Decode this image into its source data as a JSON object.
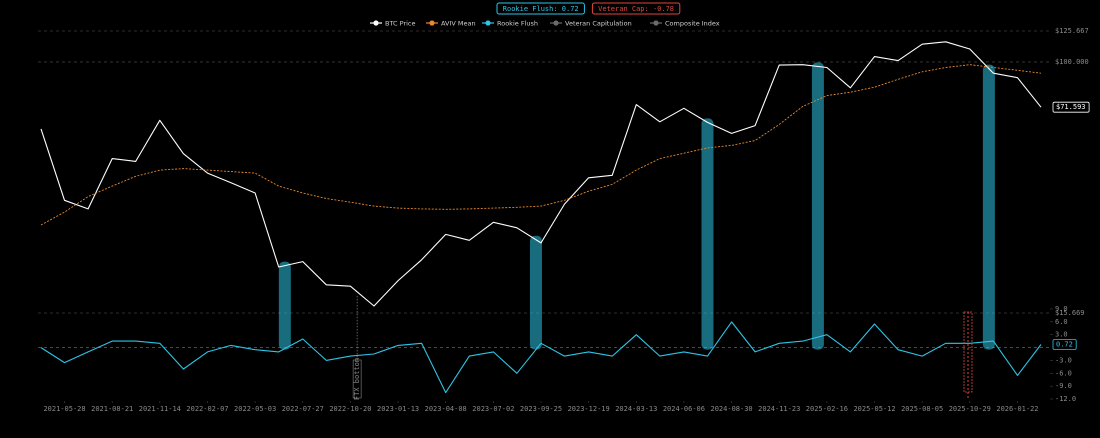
{
  "chart_data": {
    "type": "line",
    "badges": [
      {
        "text": "Rookie Flush: 0.72",
        "color": "#2ec4e6"
      },
      {
        "text": "Veteran Cap: -0.78",
        "color": "#e0463c"
      }
    ],
    "x": [
      "2021-04-16",
      "2021-05-28",
      "2021-07-09",
      "2021-08-21",
      "2021-10-02",
      "2021-11-14",
      "2021-12-26",
      "2022-02-07",
      "2022-03-21",
      "2022-05-03",
      "2022-06-14",
      "2022-07-27",
      "2022-09-07",
      "2022-10-20",
      "2022-12-01",
      "2023-01-13",
      "2023-02-24",
      "2023-04-08",
      "2023-05-20",
      "2023-07-02",
      "2023-08-13",
      "2023-09-25",
      "2023-11-06",
      "2023-12-19",
      "2024-01-30",
      "2024-03-13",
      "2024-04-24",
      "2024-06-06",
      "2024-07-18",
      "2024-08-30",
      "2024-10-11",
      "2024-11-23",
      "2025-01-04",
      "2025-02-16",
      "2025-03-30",
      "2025-05-12",
      "2025-06-23",
      "2025-08-05",
      "2025-09-16",
      "2025-10-29",
      "2025-12-10",
      "2026-01-22",
      "2026-03-05"
    ],
    "xlim": [
      "2021-04-16",
      "2026-03-05"
    ],
    "xticks": [
      "2021-05-28",
      "2021-08-21",
      "2021-11-14",
      "2022-02-07",
      "2022-05-03",
      "2022-07-27",
      "2022-10-20",
      "2023-01-13",
      "2023-04-08",
      "2023-07-02",
      "2023-09-25",
      "2023-12-19",
      "2024-03-13",
      "2024-06-06",
      "2024-08-30",
      "2024-11-23",
      "2025-02-16",
      "2025-05-12",
      "2025-08-05",
      "2025-10-29",
      "2026-01-22"
    ],
    "log_scale": true,
    "ylim": [
      15669,
      125667
    ],
    "yticks": [
      {
        "value": 15669,
        "label": "$15.669"
      },
      {
        "value": 100000,
        "label": "$100.000"
      },
      {
        "value": 125667,
        "label": "$125.667"
      }
    ],
    "y2lim": [
      -12,
      9
    ],
    "y2ticks": [
      {
        "value": 9,
        "label": "9.0"
      },
      {
        "value": 6,
        "label": "6.0"
      },
      {
        "value": 3,
        "label": "3.0"
      },
      {
        "value": -3,
        "label": "-3.0"
      },
      {
        "value": -6,
        "label": "-6.0"
      },
      {
        "value": -9,
        "label": "-9.0"
      },
      {
        "value": -12,
        "label": "-12.0"
      }
    ],
    "series": [
      {
        "name": "BTC Price",
        "color": "#ffffff",
        "end_label": "$71.593",
        "values": [
          61000,
          36000,
          33800,
          49000,
          48000,
          65000,
          50800,
          44000,
          41000,
          38000,
          22000,
          22900,
          19300,
          19100,
          16500,
          19900,
          23200,
          28000,
          26800,
          30600,
          29400,
          26300,
          35000,
          42500,
          43300,
          73000,
          64300,
          71000,
          64000,
          59000,
          62500,
          97700,
          98000,
          96000,
          82600,
          104000,
          101000,
          114000,
          116000,
          110000,
          92000,
          89000,
          71593
        ]
      },
      {
        "name": "AVIV Mean",
        "color": "#e8892b",
        "dashed": true,
        "values": [
          30000,
          33000,
          37000,
          40000,
          43000,
          45000,
          45500,
          45000,
          44500,
          44000,
          40000,
          38000,
          36500,
          35500,
          34500,
          34000,
          33800,
          33700,
          33800,
          34000,
          34200,
          34500,
          36000,
          38500,
          40500,
          45000,
          49000,
          51000,
          53000,
          54000,
          56000,
          63000,
          72000,
          78000,
          80000,
          83000,
          88000,
          93000,
          96000,
          98000,
          96000,
          94000,
          92000
        ]
      },
      {
        "name": "Rookie Flush",
        "color": "#2ec4e6",
        "axis": "y2",
        "end_label": "0.72",
        "values": [
          0,
          -3.5,
          -1,
          1.5,
          1.5,
          1,
          -5,
          -1,
          0.5,
          -0.5,
          -1,
          2,
          -3,
          -2,
          -1.5,
          0.5,
          1,
          -10.5,
          -2,
          -1,
          -6,
          1,
          -2,
          -1,
          -2,
          3,
          -2,
          -1,
          -2,
          6,
          -1,
          1,
          1.5,
          3,
          -1,
          5.5,
          -0.5,
          -2,
          1,
          1,
          1.5,
          -6.5,
          0.72
        ]
      }
    ],
    "hidden_series": [
      {
        "name": "Veteran Capitulation",
        "color": "#6b6b6b"
      },
      {
        "name": "Composite Index",
        "color": "#6b6b6b"
      }
    ],
    "highlights": [
      "2022-06-25",
      "2023-09-16",
      "2024-07-18",
      "2025-01-31",
      "2025-12-02"
    ],
    "highlight_color": "#2ec4e6",
    "annotations": [
      {
        "text": "FTX bottom",
        "x": "2022-11-01"
      }
    ]
  }
}
